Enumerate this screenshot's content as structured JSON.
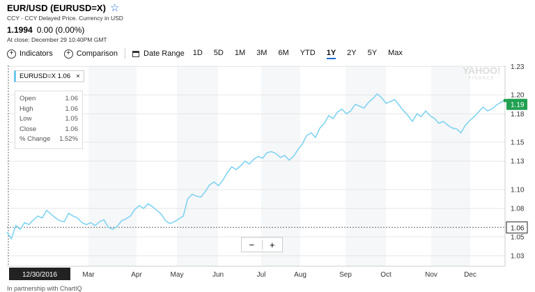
{
  "header": {
    "title": "EUR/USD (EURUSD=X)",
    "subtitle": "CCY - CCY Delayed Price. Currency in USD",
    "price": "1.1994",
    "change": "0.00 (0.00%)",
    "close_note": "At close: December 29 10:40PM GMT"
  },
  "toolbar": {
    "indicators": "Indicators",
    "comparison": "Comparison",
    "date_range": "Date Range",
    "ranges": [
      "1D",
      "5D",
      "1M",
      "3M",
      "6M",
      "YTD",
      "1Y",
      "2Y",
      "5Y",
      "Max"
    ],
    "active_range": "1Y"
  },
  "legend_chip": {
    "label": "EURUSD=X 1.06",
    "close": "×"
  },
  "tooltip": {
    "rows": [
      {
        "label": "Open",
        "value": "1.06"
      },
      {
        "label": "High",
        "value": "1.06"
      },
      {
        "label": "Low",
        "value": "1.05"
      },
      {
        "label": "Close",
        "value": "1.06"
      },
      {
        "label": "% Change",
        "value": "1.52%"
      }
    ]
  },
  "watermark": {
    "line1": "YAHOO!",
    "line2": "FINANCE"
  },
  "zoom": {
    "minus": "−",
    "plus": "+"
  },
  "footer": "In partnership with ChartIQ",
  "colors": {
    "line": "#7fd3f2",
    "current_badge": "#21a052",
    "crosshair_badge": "#222222",
    "accent": "#1e6bd6"
  },
  "chart_data": {
    "type": "line",
    "series": [
      {
        "name": "EURUSD=X",
        "values": [
          1.055,
          1.048,
          1.062,
          1.058,
          1.065,
          1.063,
          1.068,
          1.072,
          1.07,
          1.078,
          1.074,
          1.07,
          1.067,
          1.066,
          1.075,
          1.072,
          1.07,
          1.065,
          1.063,
          1.065,
          1.062,
          1.066,
          1.068,
          1.06,
          1.058,
          1.061,
          1.067,
          1.069,
          1.072,
          1.079,
          1.083,
          1.08,
          1.085,
          1.082,
          1.078,
          1.074,
          1.067,
          1.064,
          1.066,
          1.069,
          1.072,
          1.09,
          1.095,
          1.093,
          1.092,
          1.098,
          1.105,
          1.108,
          1.104,
          1.11,
          1.118,
          1.124,
          1.121,
          1.125,
          1.13,
          1.127,
          1.132,
          1.135,
          1.133,
          1.139,
          1.14,
          1.138,
          1.134,
          1.136,
          1.131,
          1.135,
          1.142,
          1.148,
          1.157,
          1.16,
          1.155,
          1.165,
          1.17,
          1.178,
          1.175,
          1.182,
          1.185,
          1.18,
          1.183,
          1.19,
          1.188,
          1.186,
          1.192,
          1.196,
          1.201,
          1.197,
          1.191,
          1.193,
          1.195,
          1.189,
          1.183,
          1.178,
          1.172,
          1.18,
          1.177,
          1.183,
          1.178,
          1.175,
          1.17,
          1.172,
          1.168,
          1.165,
          1.164,
          1.16,
          1.168,
          1.173,
          1.177,
          1.182,
          1.187,
          1.183,
          1.185,
          1.189,
          1.192,
          1.194
        ]
      }
    ],
    "current_value": 1.19,
    "crosshair_value": 1.06,
    "x_ticks": [
      "12/30/2016",
      "Mar",
      "Apr",
      "May",
      "Jun",
      "Jul",
      "Aug",
      "Sep",
      "Oct",
      "Nov",
      "Dec"
    ],
    "y_ticks": [
      1.23,
      1.2,
      1.18,
      1.15,
      1.13,
      1.1,
      1.08,
      1.05,
      1.03
    ],
    "ylim": [
      1.019,
      1.231
    ],
    "grid": true
  }
}
